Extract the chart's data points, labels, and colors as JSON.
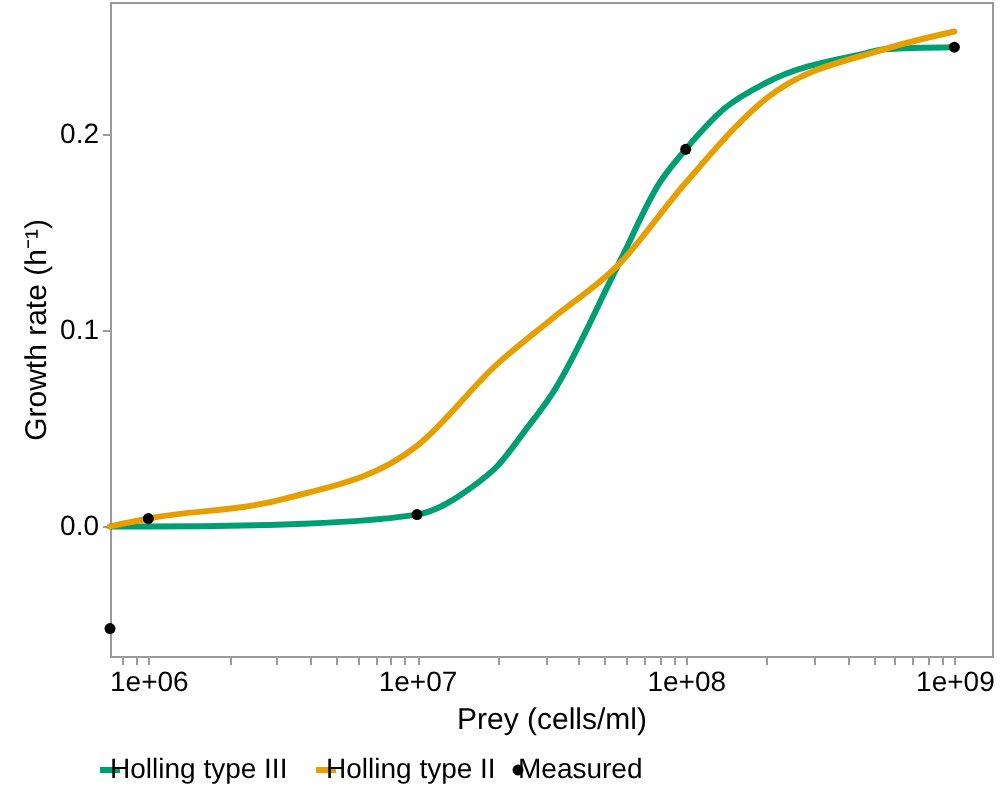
{
  "chart_data": {
    "type": "line",
    "xlabel": "Prey (cells/ml)",
    "ylabel": "Growth rate (h⁻¹)",
    "log": "x",
    "legend": "bottom",
    "xlim": [
      720000,
      1380000000
    ],
    "ylim": [
      -0.066,
      0.267
    ],
    "xticks": [
      {
        "value": 800000,
        "label": null
      },
      {
        "value": 900000,
        "label": null
      },
      {
        "value": 1000000,
        "label": "1e+06"
      },
      {
        "value": 2000000,
        "label": null
      },
      {
        "value": 3000000,
        "label": null
      },
      {
        "value": 4000000,
        "label": null
      },
      {
        "value": 5000000,
        "label": null
      },
      {
        "value": 6000000,
        "label": null
      },
      {
        "value": 7000000,
        "label": null
      },
      {
        "value": 8000000,
        "label": null
      },
      {
        "value": 9000000,
        "label": null
      },
      {
        "value": 10000000,
        "label": "1e+07"
      },
      {
        "value": 20000000,
        "label": null
      },
      {
        "value": 30000000,
        "label": null
      },
      {
        "value": 40000000,
        "label": null
      },
      {
        "value": 50000000,
        "label": null
      },
      {
        "value": 60000000,
        "label": null
      },
      {
        "value": 70000000,
        "label": null
      },
      {
        "value": 80000000,
        "label": null
      },
      {
        "value": 90000000,
        "label": null
      },
      {
        "value": 100000000,
        "label": "1e+08"
      },
      {
        "value": 200000000,
        "label": null
      },
      {
        "value": 300000000,
        "label": null
      },
      {
        "value": 400000000,
        "label": null
      },
      {
        "value": 500000000,
        "label": null
      },
      {
        "value": 600000000,
        "label": null
      },
      {
        "value": 700000000,
        "label": null
      },
      {
        "value": 800000000,
        "label": null
      },
      {
        "value": 900000000,
        "label": null
      },
      {
        "value": 1000000000,
        "label": "1e+09"
      }
    ],
    "yticks": [
      {
        "value": 0,
        "label": "0.0"
      },
      0.1,
      0.2
    ],
    "series": [
      {
        "name": "Holling type III",
        "color": "#009e73",
        "x": [
          720000,
          1000000,
          3200000,
          10000000,
          16000000,
          20000000,
          25000000,
          32000000,
          56000000,
          80000000,
          100000000,
          140000000,
          200000000,
          470000000,
          550000000,
          1000000000
        ],
        "values": [
          0,
          0,
          0.001,
          0.006,
          0.02,
          0.031,
          0.048,
          0.068,
          0.133,
          0.175,
          0.192,
          0.213,
          0.226,
          0.241,
          0.243,
          0.244
        ]
      },
      {
        "name": "Holling type II",
        "color": "#e69f00",
        "x": [
          720000,
          1000000,
          3200000,
          10000000,
          20000000,
          32000000,
          56000000,
          100000000,
          200000000,
          550000000,
          1000000000
        ],
        "values": [
          0,
          0.004,
          0.014,
          0.041,
          0.083,
          0.106,
          0.133,
          0.175,
          0.218,
          0.243,
          0.252
        ]
      },
      {
        "name": "Measured",
        "color": "#000000",
        "type": "scatter",
        "marker": "circle",
        "x": [
          720000,
          1000000,
          10000000,
          100000000,
          1000000000
        ],
        "values": [
          -0.052,
          0.004,
          0.006,
          0.192,
          0.244
        ]
      }
    ]
  }
}
